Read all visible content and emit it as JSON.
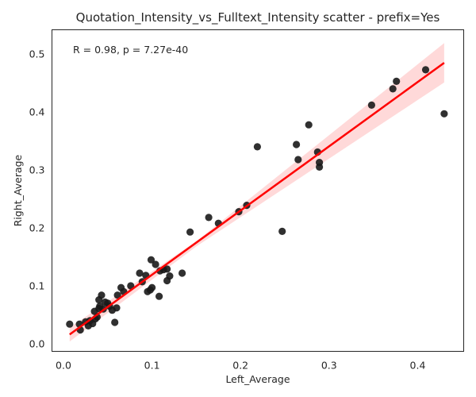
{
  "chart_data": {
    "type": "scatter",
    "title": "Quotation_Intensity_vs_Fulltext_Intensity scatter - prefix=Yes",
    "xlabel": "Left_Average",
    "ylabel": "Right_Average",
    "xlim": [
      -0.013,
      0.452
    ],
    "ylim": [
      -0.013,
      0.542
    ],
    "xticks": [
      0.0,
      0.1,
      0.2,
      0.3,
      0.4
    ],
    "xtick_labels": [
      "0.0",
      "0.1",
      "0.2",
      "0.3",
      "0.4"
    ],
    "yticks": [
      0.0,
      0.1,
      0.2,
      0.3,
      0.4,
      0.5
    ],
    "ytick_labels": [
      "0.0",
      "0.1",
      "0.2",
      "0.3",
      "0.4",
      "0.5"
    ],
    "grid": false,
    "annotation": "R = 0.98, p = 7.27e-40",
    "points": {
      "color": "#1a1a1a",
      "x": [
        0.007,
        0.018,
        0.019,
        0.025,
        0.028,
        0.03,
        0.033,
        0.035,
        0.036,
        0.038,
        0.04,
        0.04,
        0.041,
        0.043,
        0.045,
        0.047,
        0.05,
        0.052,
        0.055,
        0.058,
        0.06,
        0.061,
        0.065,
        0.068,
        0.076,
        0.086,
        0.089,
        0.093,
        0.095,
        0.098,
        0.099,
        0.1,
        0.104,
        0.108,
        0.109,
        0.113,
        0.117,
        0.117,
        0.12,
        0.134,
        0.143,
        0.164,
        0.175,
        0.198,
        0.207,
        0.219,
        0.247,
        0.263,
        0.265,
        0.277,
        0.287,
        0.289,
        0.289,
        0.348,
        0.372,
        0.376,
        0.409,
        0.43
      ],
      "y": [
        0.034,
        0.034,
        0.024,
        0.038,
        0.031,
        0.04,
        0.035,
        0.056,
        0.043,
        0.046,
        0.061,
        0.076,
        0.065,
        0.084,
        0.06,
        0.072,
        0.07,
        0.065,
        0.058,
        0.037,
        0.062,
        0.084,
        0.097,
        0.09,
        0.1,
        0.122,
        0.107,
        0.118,
        0.09,
        0.093,
        0.145,
        0.097,
        0.137,
        0.082,
        0.126,
        0.128,
        0.129,
        0.109,
        0.117,
        0.122,
        0.193,
        0.218,
        0.208,
        0.228,
        0.239,
        0.34,
        0.194,
        0.344,
        0.318,
        0.378,
        0.331,
        0.313,
        0.305,
        0.412,
        0.44,
        0.453,
        0.473,
        0.397
      ]
    },
    "regression": {
      "color": "#ff0000",
      "x": [
        0.007,
        0.43
      ],
      "y": [
        0.016,
        0.485
      ],
      "ci_upper_end": [
        0.43,
        0.519
      ],
      "ci_lower_end": [
        0.43,
        0.451
      ],
      "ci_upper_start": [
        0.007,
        0.028
      ],
      "ci_lower_start": [
        0.007,
        0.004
      ],
      "ci_upper_mid": [
        0.15,
        0.177
      ],
      "ci_lower_mid": [
        0.15,
        0.168
      ],
      "band_color": "#ff0000"
    }
  }
}
